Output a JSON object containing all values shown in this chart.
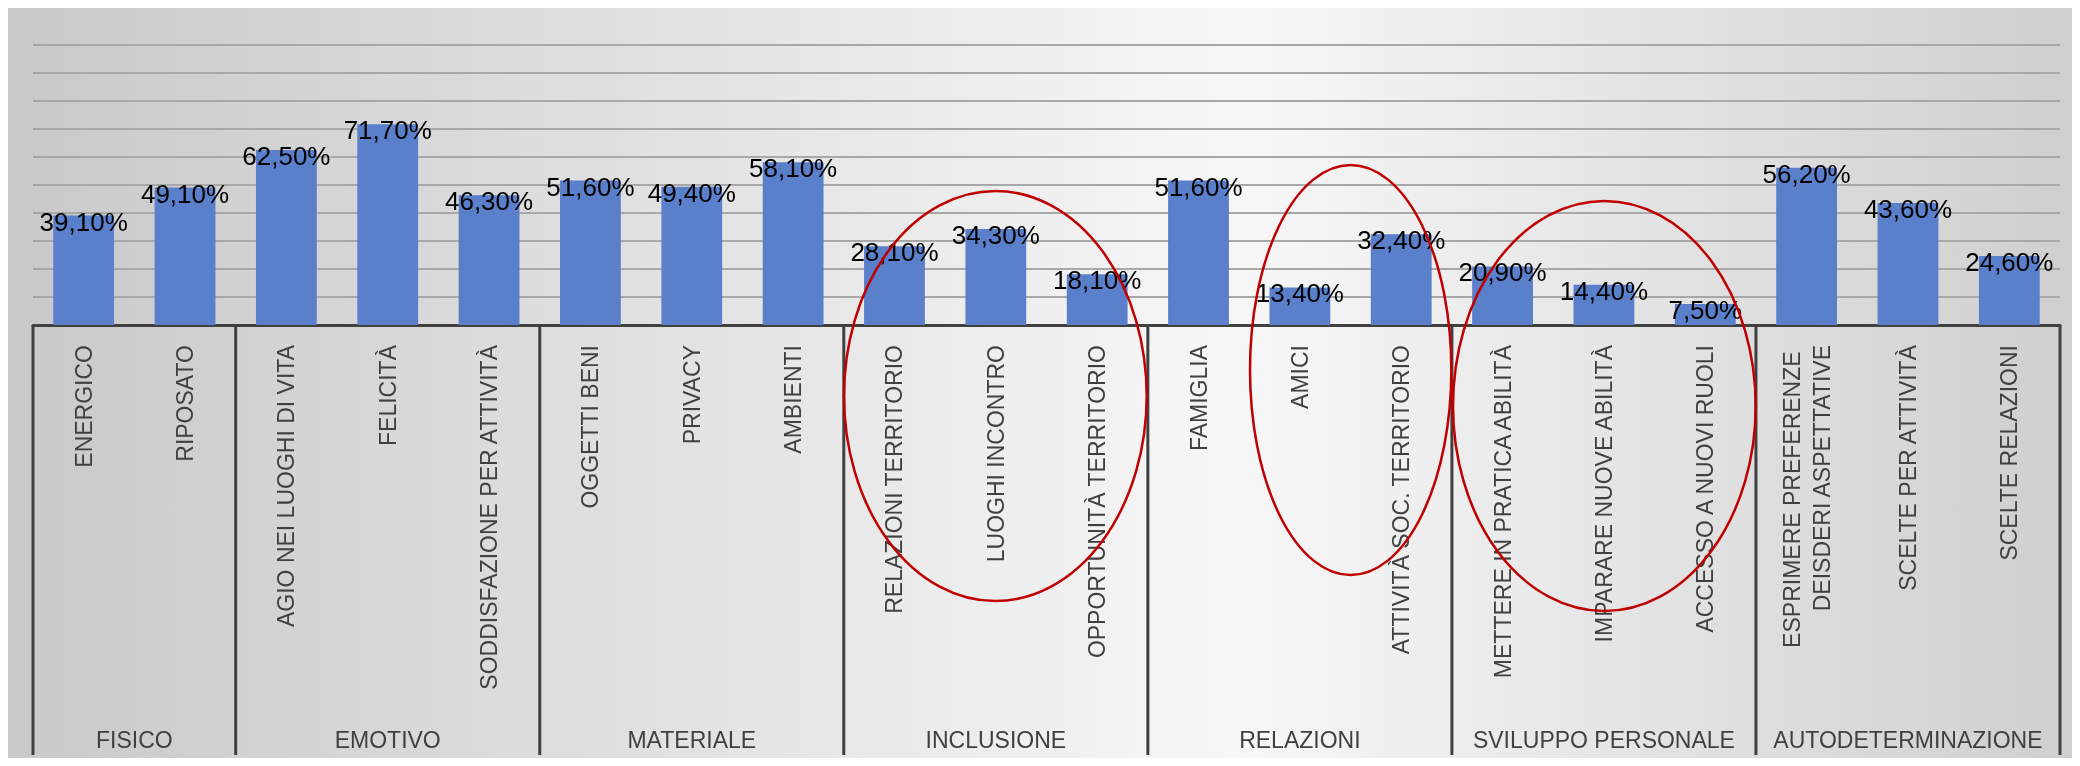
{
  "chart_data": {
    "type": "bar",
    "categories": [
      "ENERGICO",
      "RIPOSATO",
      "AGIO NEI LUOGHI DI VITA",
      "FELICITÀ",
      "SODDISFAZIONE PER ATTIVITÀ",
      "OGGETTI BENI",
      "PRIVACY",
      "AMBIENTI",
      "RELAZIONI TERRITORIO",
      "LUOGHI INCONTRO",
      "OPPORTUNITÀ TERRITORIO",
      "FAMIGLIA",
      "AMICI",
      "ATTIVITÀ SOC. TERRITORIO",
      "METTERE IN PRATICA ABILITÀ",
      "IMPARARE NUOVE ABILITÀ",
      "ACCESSO A NUOVI RUOLI",
      "ESPRIMERE PREFERENZE DEISDERI ASPETTATIVE",
      "SCELTE PER ATTIVITÀ",
      "SCELTE RELAZIONI"
    ],
    "values": [
      39.1,
      49.1,
      62.5,
      71.7,
      46.3,
      51.6,
      49.4,
      58.1,
      28.1,
      34.3,
      18.1,
      51.6,
      13.4,
      32.4,
      20.9,
      14.4,
      7.5,
      56.2,
      43.6,
      24.6
    ],
    "value_labels": [
      "39,10%",
      "49,10%",
      "62,50%",
      "71,70%",
      "46,30%",
      "51,60%",
      "49,40%",
      "58,10%",
      "28,10%",
      "34,30%",
      "18,10%",
      "51,60%",
      "13,40%",
      "32,40%",
      "20,90%",
      "14,40%",
      "7,50%",
      "56,20%",
      "43,60%",
      "24,60%"
    ],
    "color": "#5a7fcb",
    "ylim": [
      0,
      100
    ],
    "yticks": [
      {
        "value": 0,
        "label": null
      },
      {
        "value": 10,
        "label": null
      },
      {
        "value": 20,
        "label": null
      },
      {
        "value": 30,
        "label": null
      },
      {
        "value": 40,
        "label": null
      },
      {
        "value": 50,
        "label": null
      },
      {
        "value": 60,
        "label": null
      },
      {
        "value": 70,
        "label": null
      },
      {
        "value": 80,
        "label": null
      },
      {
        "value": 90,
        "label": null
      },
      {
        "value": 100,
        "label": null
      }
    ],
    "tick_labels": "x",
    "grid": "y",
    "annotations": [
      "FISICO",
      "EMOTIVO",
      "MATERIALE",
      "INCLUSIONE",
      "RELAZIONI",
      "SVILUPPO PERSONALE",
      "AUTODETERMINAZIONE"
    ]
  }
}
